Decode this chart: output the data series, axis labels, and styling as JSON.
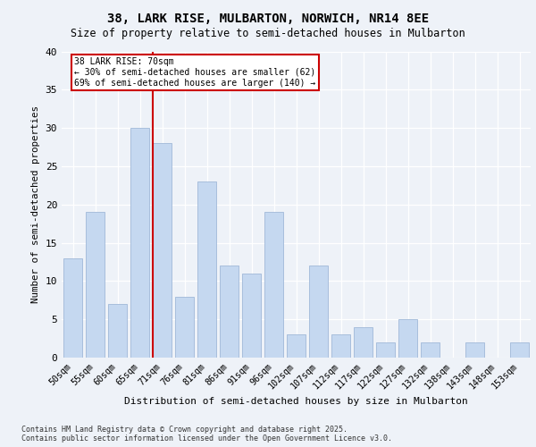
{
  "title1": "38, LARK RISE, MULBARTON, NORWICH, NR14 8EE",
  "title2": "Size of property relative to semi-detached houses in Mulbarton",
  "xlabel": "Distribution of semi-detached houses by size in Mulbarton",
  "ylabel": "Number of semi-detached properties",
  "categories": [
    "50sqm",
    "55sqm",
    "60sqm",
    "65sqm",
    "71sqm",
    "76sqm",
    "81sqm",
    "86sqm",
    "91sqm",
    "96sqm",
    "102sqm",
    "107sqm",
    "112sqm",
    "117sqm",
    "122sqm",
    "127sqm",
    "132sqm",
    "138sqm",
    "143sqm",
    "148sqm",
    "153sqm"
  ],
  "values": [
    13,
    19,
    7,
    30,
    28,
    8,
    23,
    12,
    11,
    19,
    3,
    12,
    3,
    4,
    2,
    5,
    2,
    0,
    2,
    0,
    2
  ],
  "bar_color": "#c5d8f0",
  "bar_edge_color": "#a0b8d8",
  "vline_bar_index": 4,
  "vline_color": "#cc0000",
  "annotation_title": "38 LARK RISE: 70sqm",
  "annotation_line2": "← 30% of semi-detached houses are smaller (62)",
  "annotation_line3": "69% of semi-detached houses are larger (140) →",
  "annotation_box_color": "#cc0000",
  "ylim": [
    0,
    40
  ],
  "yticks": [
    0,
    5,
    10,
    15,
    20,
    25,
    30,
    35,
    40
  ],
  "bg_color": "#eef2f8",
  "footer1": "Contains HM Land Registry data © Crown copyright and database right 2025.",
  "footer2": "Contains public sector information licensed under the Open Government Licence v3.0."
}
